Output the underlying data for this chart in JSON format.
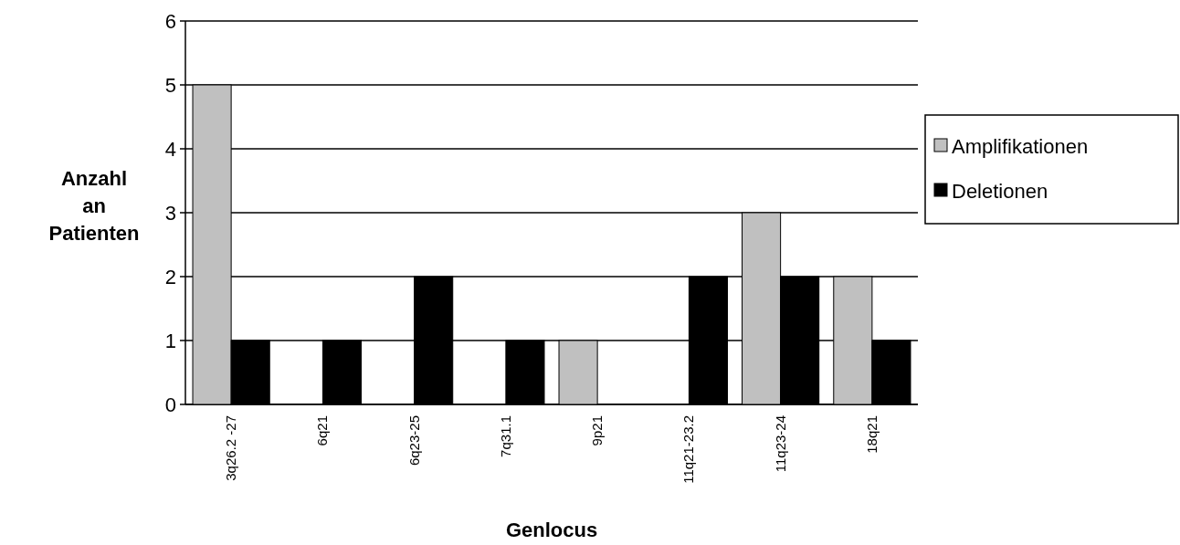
{
  "chart_data": {
    "type": "bar",
    "xlabel": "Genlocus",
    "ylabel": "Anzahl an Patienten",
    "categories": [
      "3q26.2 -27",
      "6q21",
      "6q23-25",
      "7q31.1",
      "9p21",
      "11q21-23.2",
      "11q23-24",
      "18q21"
    ],
    "series": [
      {
        "name": "Amplifikationen",
        "color": "#c0c0c0",
        "values": [
          5,
          0,
          0,
          0,
          1,
          0,
          3,
          2
        ]
      },
      {
        "name": "Deletionen",
        "color": "#000000",
        "values": [
          1,
          1,
          2,
          1,
          0,
          2,
          2,
          1
        ]
      }
    ],
    "ylim": [
      0,
      6
    ],
    "yticks": [
      0,
      1,
      2,
      3,
      4,
      5,
      6
    ],
    "grid": "y",
    "legend": "right"
  }
}
